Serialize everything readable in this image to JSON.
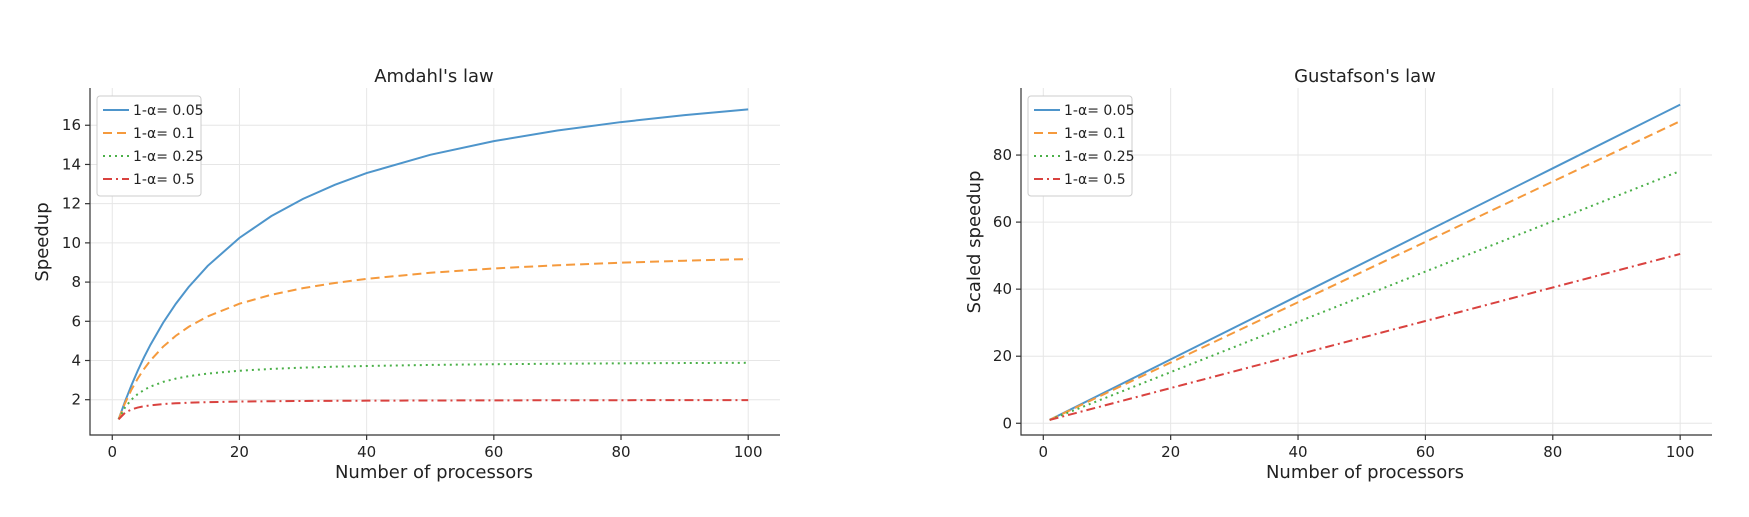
{
  "chart_data": [
    {
      "type": "line",
      "title": "Amdahl's law",
      "xlabel": "Number of processors",
      "ylabel": "Speedup",
      "xlim": [
        -3.5,
        105
      ],
      "ylim": [
        0.2,
        17.9
      ],
      "xticks": [
        0,
        20,
        40,
        60,
        80,
        100
      ],
      "yticks": [
        2,
        4,
        6,
        8,
        10,
        12,
        14,
        16
      ],
      "grid": true,
      "legend": "top-left",
      "x": [
        1,
        2,
        3,
        4,
        5,
        6,
        8,
        10,
        12,
        15,
        20,
        25,
        30,
        35,
        40,
        50,
        60,
        70,
        80,
        90,
        100
      ],
      "series": [
        {
          "name": "1-α= 0.05",
          "color": "#4e95cb",
          "dash": "solid",
          "values": [
            1.0,
            1.905,
            2.727,
            3.478,
            4.167,
            4.8,
            5.926,
            6.897,
            7.742,
            8.824,
            10.256,
            11.364,
            12.245,
            12.963,
            13.559,
            14.493,
            15.19,
            15.73,
            16.162,
            16.514,
            16.807
          ]
        },
        {
          "name": "1-α= 0.1",
          "color": "#f59a3d",
          "dash": "dashed",
          "values": [
            1.0,
            1.818,
            2.5,
            3.077,
            3.571,
            4.0,
            4.706,
            5.263,
            5.714,
            6.25,
            6.897,
            7.353,
            7.692,
            7.955,
            8.163,
            8.475,
            8.696,
            8.861,
            8.989,
            9.091,
            9.174
          ]
        },
        {
          "name": "1-α= 0.25",
          "color": "#4bb049",
          "dash": "dotted",
          "values": [
            1.0,
            1.6,
            2.0,
            2.286,
            2.5,
            2.667,
            2.909,
            3.077,
            3.2,
            3.333,
            3.478,
            3.571,
            3.636,
            3.684,
            3.721,
            3.774,
            3.81,
            3.836,
            3.855,
            3.871,
            3.883
          ]
        },
        {
          "name": "1-α= 0.5",
          "color": "#d9423f",
          "dash": "dashdot",
          "values": [
            1.0,
            1.333,
            1.5,
            1.6,
            1.667,
            1.714,
            1.778,
            1.818,
            1.846,
            1.875,
            1.905,
            1.923,
            1.935,
            1.944,
            1.951,
            1.961,
            1.967,
            1.972,
            1.975,
            1.978,
            1.98
          ]
        }
      ]
    },
    {
      "type": "line",
      "title": "Gustafson's law",
      "xlabel": "Number of processors",
      "ylabel": "Scaled speedup",
      "xlim": [
        -3.5,
        105
      ],
      "ylim": [
        -3.5,
        100
      ],
      "xticks": [
        0,
        20,
        40,
        60,
        80,
        100
      ],
      "yticks": [
        0,
        20,
        40,
        60,
        80
      ],
      "grid": true,
      "legend": "top-left",
      "x": [
        1,
        20,
        40,
        60,
        80,
        100
      ],
      "series": [
        {
          "name": "1-α= 0.05",
          "color": "#4e95cb",
          "dash": "solid",
          "values": [
            1.0,
            19.05,
            38.05,
            57.05,
            76.05,
            95.05
          ]
        },
        {
          "name": "1-α= 0.1",
          "color": "#f59a3d",
          "dash": "dashed",
          "values": [
            1.0,
            18.1,
            36.1,
            54.1,
            72.1,
            90.1
          ]
        },
        {
          "name": "1-α= 0.25",
          "color": "#4bb049",
          "dash": "dotted",
          "values": [
            1.0,
            15.25,
            30.25,
            45.25,
            60.25,
            75.25
          ]
        },
        {
          "name": "1-α= 0.5",
          "color": "#d9423f",
          "dash": "dashdot",
          "values": [
            1.0,
            10.5,
            20.5,
            30.5,
            40.5,
            50.5
          ]
        }
      ]
    }
  ]
}
